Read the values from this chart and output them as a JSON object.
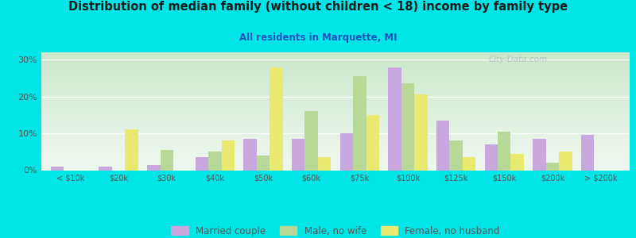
{
  "title": "Distribution of median family (without children < 18) income by family type",
  "subtitle": "All residents in Marquette, MI",
  "categories": [
    "< $10k",
    "$20k",
    "$30k",
    "$40k",
    "$50k",
    "$60k",
    "$75k",
    "$100k",
    "$125k",
    "$150k",
    "$200k",
    "> $200k"
  ],
  "married_couple": [
    1,
    1,
    1.5,
    3.5,
    8.5,
    8.5,
    10,
    28,
    13.5,
    7,
    8.5,
    9.5
  ],
  "male_no_wife": [
    0,
    0,
    5.5,
    5.0,
    4.0,
    16.0,
    25.5,
    23.5,
    8.0,
    10.5,
    2.0,
    0
  ],
  "female_no_husband": [
    0,
    11,
    0,
    8.0,
    28,
    3.5,
    15.0,
    20.5,
    3.5,
    4.5,
    5.0,
    0
  ],
  "married_color": "#c8a8df",
  "male_color": "#b8d898",
  "female_color": "#eaea70",
  "background_color": "#00e5e5",
  "grad_top": "#cce8cc",
  "grad_bottom": "#f0f8f0",
  "title_color": "#1a1a1a",
  "subtitle_color": "#2255bb",
  "axis_color": "#555555",
  "watermark": "City-Data.com",
  "ylim": [
    0,
    32
  ],
  "yticks": [
    0,
    10,
    20,
    30
  ],
  "bar_width": 0.27
}
